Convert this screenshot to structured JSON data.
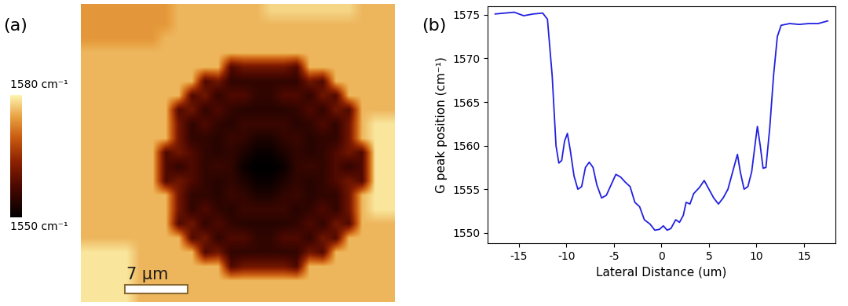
{
  "chart_data": [
    {
      "type": "heatmap",
      "panel": "(a)",
      "tick_labels": false,
      "pixel_size": 1.46,
      "scale_bar": {
        "length": 7,
        "label": "7 µm"
      },
      "colorbar": {
        "range": [
          1550,
          1580
        ],
        "ticks": [
          {
            "value": 1580,
            "label": "1580 cm⁻¹"
          },
          {
            "value": 1550,
            "label": "1550 cm⁻¹"
          }
        ]
      },
      "cells": [
        [
          1574,
          1574,
          1574,
          1574,
          1574,
          1574,
          1574,
          1576,
          1576,
          1576,
          1576,
          1576,
          1576,
          1576,
          1578,
          1578,
          1578,
          1578,
          1578,
          1578,
          1578,
          1576,
          1576,
          1576
        ],
        [
          1574,
          1574,
          1574,
          1574,
          1574,
          1574,
          1574,
          1576,
          1576,
          1576,
          1576,
          1576,
          1576,
          1576,
          1576,
          1576,
          1576,
          1576,
          1576,
          1576,
          1576,
          1576,
          1576,
          1576
        ],
        [
          1574,
          1574,
          1574,
          1574,
          1574,
          1574,
          1576,
          1576,
          1576,
          1576,
          1576,
          1576,
          1576,
          1576,
          1576,
          1576,
          1576,
          1576,
          1576,
          1576,
          1576,
          1576,
          1576,
          1576
        ],
        [
          1576,
          1576,
          1576,
          1576,
          1576,
          1576,
          1576,
          1576,
          1576,
          1576,
          1576,
          1576,
          1576,
          1576,
          1576,
          1576,
          1576,
          1576,
          1576,
          1576,
          1576,
          1576,
          1576,
          1576
        ],
        [
          1576,
          1576,
          1576,
          1576,
          1576,
          1576,
          1576,
          1576,
          1576,
          1576,
          1576,
          1558,
          1561,
          1561,
          1561,
          1561,
          1558,
          1576,
          1576,
          1576,
          1576,
          1576,
          1576,
          1576
        ],
        [
          1576,
          1576,
          1576,
          1576,
          1576,
          1576,
          1576,
          1576,
          1576,
          1558,
          1561,
          1555,
          1555,
          1555,
          1555,
          1555,
          1555,
          1561,
          1558,
          1576,
          1576,
          1576,
          1576,
          1576
        ],
        [
          1576,
          1576,
          1576,
          1576,
          1576,
          1576,
          1576,
          1576,
          1558,
          1561,
          1555,
          1558,
          1558,
          1555,
          1555,
          1558,
          1558,
          1555,
          1561,
          1558,
          1576,
          1576,
          1576,
          1576
        ],
        [
          1576,
          1576,
          1576,
          1576,
          1576,
          1576,
          1576,
          1558,
          1561,
          1555,
          1558,
          1555,
          1554,
          1554,
          1554,
          1554,
          1555,
          1558,
          1555,
          1561,
          1558,
          1576,
          1576,
          1576
        ],
        [
          1576,
          1576,
          1576,
          1576,
          1576,
          1576,
          1576,
          1561,
          1555,
          1558,
          1555,
          1554,
          1556,
          1556,
          1556,
          1556,
          1554,
          1555,
          1558,
          1555,
          1561,
          1576,
          1579,
          1579
        ],
        [
          1576,
          1576,
          1576,
          1576,
          1576,
          1576,
          1576,
          1561,
          1555,
          1555,
          1554,
          1556,
          1555,
          1553,
          1553,
          1555,
          1556,
          1554,
          1555,
          1555,
          1561,
          1576,
          1579,
          1579
        ],
        [
          1576,
          1576,
          1576,
          1576,
          1576,
          1576,
          1558,
          1561,
          1558,
          1555,
          1554,
          1555,
          1553,
          1551,
          1551,
          1553,
          1555,
          1554,
          1555,
          1558,
          1561,
          1558,
          1579,
          1579
        ],
        [
          1576,
          1576,
          1576,
          1576,
          1576,
          1576,
          1558,
          1555,
          1558,
          1555,
          1556,
          1555,
          1551,
          1550,
          1550,
          1551,
          1555,
          1556,
          1555,
          1558,
          1555,
          1558,
          1579,
          1579
        ],
        [
          1576,
          1576,
          1576,
          1576,
          1576,
          1576,
          1558,
          1561,
          1558,
          1555,
          1554,
          1555,
          1553,
          1551,
          1551,
          1553,
          1555,
          1554,
          1555,
          1558,
          1561,
          1558,
          1579,
          1579
        ],
        [
          1576,
          1576,
          1576,
          1576,
          1576,
          1576,
          1576,
          1561,
          1555,
          1555,
          1554,
          1556,
          1555,
          1553,
          1553,
          1555,
          1556,
          1554,
          1555,
          1555,
          1561,
          1576,
          1579,
          1579
        ],
        [
          1576,
          1576,
          1576,
          1576,
          1576,
          1576,
          1576,
          1561,
          1555,
          1558,
          1555,
          1554,
          1556,
          1556,
          1556,
          1556,
          1554,
          1555,
          1558,
          1555,
          1561,
          1576,
          1579,
          1579
        ],
        [
          1576,
          1576,
          1576,
          1576,
          1576,
          1576,
          1576,
          1558,
          1561,
          1555,
          1558,
          1555,
          1554,
          1554,
          1554,
          1554,
          1555,
          1558,
          1555,
          1561,
          1558,
          1576,
          1576,
          1576
        ],
        [
          1576,
          1576,
          1576,
          1576,
          1576,
          1576,
          1576,
          1576,
          1558,
          1561,
          1555,
          1558,
          1558,
          1555,
          1555,
          1558,
          1558,
          1555,
          1561,
          1558,
          1576,
          1576,
          1576,
          1576
        ],
        [
          1579,
          1579,
          1579,
          1579,
          1576,
          1576,
          1576,
          1576,
          1576,
          1558,
          1561,
          1555,
          1555,
          1555,
          1555,
          1555,
          1555,
          1561,
          1558,
          1576,
          1576,
          1576,
          1576,
          1576
        ],
        [
          1579,
          1579,
          1579,
          1579,
          1576,
          1576,
          1576,
          1576,
          1576,
          1576,
          1576,
          1558,
          1561,
          1561,
          1561,
          1561,
          1558,
          1576,
          1576,
          1576,
          1576,
          1576,
          1576,
          1576
        ],
        [
          1579,
          1579,
          1579,
          1579,
          1576,
          1576,
          1576,
          1576,
          1576,
          1576,
          1576,
          1576,
          1576,
          1576,
          1576,
          1576,
          1576,
          1576,
          1576,
          1576,
          1576,
          1576,
          1576,
          1576
        ],
        [
          1579,
          1579,
          1579,
          1579,
          1576,
          1576,
          1576,
          1576,
          1576,
          1576,
          1576,
          1576,
          1576,
          1576,
          1576,
          1576,
          1576,
          1576,
          1576,
          1576,
          1576,
          1576,
          1576,
          1576
        ]
      ]
    },
    {
      "type": "line",
      "panel": "(b)",
      "color": "#2020e0",
      "x_label": "Lateral Distance (um)",
      "y_label": "G peak position (cm⁻¹)",
      "xlim": [
        -18.3,
        18.3
      ],
      "ylim": [
        1548.8,
        1576
      ],
      "xticks": [
        -15,
        -10,
        -5,
        0,
        5,
        10,
        15
      ],
      "yticks": [
        1550,
        1555,
        1560,
        1565,
        1570,
        1575
      ],
      "x": [
        -17.5,
        -16.5,
        -15.5,
        -14.5,
        -13.5,
        -12.5,
        -12.0,
        -11.5,
        -11.1,
        -10.8,
        -10.5,
        -10.2,
        -9.9,
        -9.6,
        -9.2,
        -8.8,
        -8.4,
        -8.0,
        -7.6,
        -7.2,
        -6.8,
        -6.3,
        -5.8,
        -5.3,
        -4.8,
        -4.3,
        -3.8,
        -3.3,
        -2.8,
        -2.3,
        -1.8,
        -1.2,
        -0.7,
        -0.2,
        0.2,
        0.6,
        1.0,
        1.5,
        1.9,
        2.3,
        2.6,
        3.0,
        3.4,
        4.0,
        4.5,
        5.0,
        5.5,
        6.0,
        6.5,
        7.0,
        7.5,
        8.0,
        8.3,
        8.7,
        9.1,
        9.5,
        9.9,
        10.1,
        10.4,
        10.7,
        11.0,
        11.4,
        11.8,
        12.2,
        12.6,
        13.5,
        14.5,
        15.5,
        16.5,
        17.5
      ],
      "values": [
        1575.1,
        1575.2,
        1575.3,
        1574.9,
        1575.1,
        1575.2,
        1574.5,
        1568,
        1560,
        1558,
        1558.3,
        1560.5,
        1561.4,
        1559.5,
        1556.5,
        1555,
        1555.3,
        1557.5,
        1558.1,
        1557.5,
        1555.5,
        1554,
        1554.3,
        1555.5,
        1556.7,
        1556.4,
        1555.8,
        1555.3,
        1553.5,
        1553,
        1551.5,
        1551,
        1550.3,
        1550.4,
        1550.8,
        1550.3,
        1550.5,
        1551.5,
        1551.2,
        1552,
        1553.5,
        1553.3,
        1554.5,
        1555.2,
        1556,
        1555,
        1554,
        1553.3,
        1554,
        1555,
        1557,
        1559,
        1557,
        1555,
        1555.3,
        1557,
        1560.5,
        1562.2,
        1560,
        1557.4,
        1557.5,
        1562,
        1568,
        1572.5,
        1573.8,
        1574,
        1573.9,
        1574,
        1574,
        1574.3
      ]
    }
  ]
}
